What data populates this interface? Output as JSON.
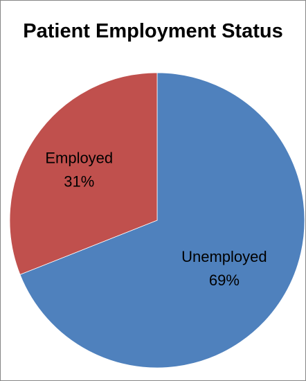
{
  "chart_data": {
    "type": "pie",
    "title": "Patient Employment Status",
    "slices": [
      {
        "label": "Unemployed",
        "value": 69,
        "value_label": "69%",
        "color": "#4F81BD"
      },
      {
        "label": "Employed",
        "value": 31,
        "value_label": "31%",
        "color": "#C0504D"
      }
    ],
    "start_angle_deg": 0,
    "direction": "clockwise",
    "legend": "none"
  }
}
